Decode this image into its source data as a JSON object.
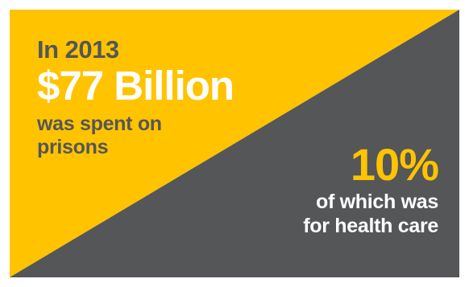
{
  "colors": {
    "background": "#ffffff",
    "yellow": "#ffc300",
    "gray": "#545658",
    "white": "#ffffff"
  },
  "left": {
    "intro": "In 2013",
    "amount": "$77 Billion",
    "description_line1": "was spent on",
    "description_line2": "prisons"
  },
  "right": {
    "percent": "10%",
    "detail_line1": "of which was",
    "detail_line2": "for health care"
  }
}
